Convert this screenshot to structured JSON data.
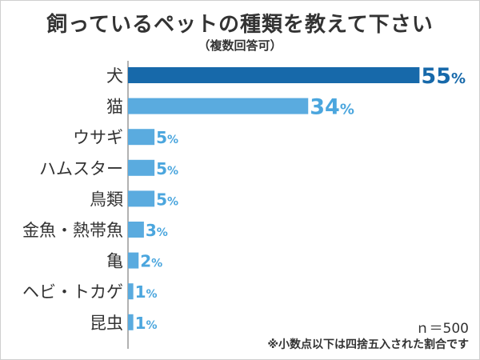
{
  "chart_data": {
    "type": "bar",
    "orientation": "horizontal",
    "title": "飼っているペットの種類を教えて下さい",
    "subtitle": "（複数回答可）",
    "categories": [
      "犬",
      "猫",
      "ウサギ",
      "ハムスター",
      "鳥類",
      "金魚・熱帯魚",
      "亀",
      "ヘビ・トカゲ",
      "昆虫"
    ],
    "values": [
      55,
      34,
      5,
      5,
      5,
      3,
      2,
      1,
      1
    ],
    "value_suffix": "%",
    "xlim": [
      0,
      56
    ],
    "sample_size": "ｎ＝500",
    "footnote": "※小数点以下は四捨五入された割合です",
    "colors": {
      "highlight": "#1769aa",
      "bar": "#5aabdf",
      "highlight_text": "#1769aa",
      "text": "#4ba6de"
    }
  }
}
